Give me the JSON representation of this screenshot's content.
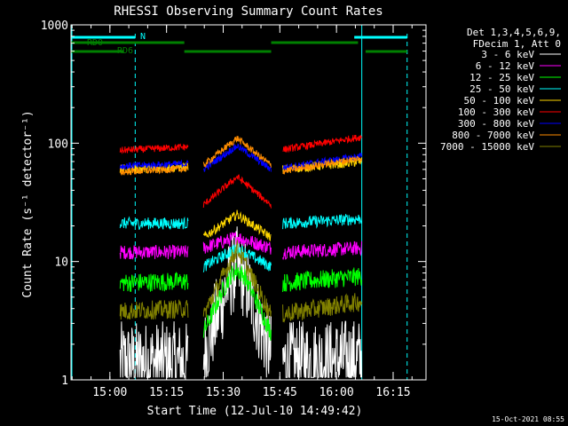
{
  "chart_data": {
    "type": "line",
    "title": "RHESSI Observing Summary Count Rates",
    "xlabel": "Start Time (12-Jul-10 14:49:42)",
    "ylabel": "Count Rate (s⁻¹ detector⁻¹)",
    "yscale": "log",
    "ylim": [
      1,
      1000
    ],
    "y_ticks": [
      {
        "value": 1,
        "label": "1"
      },
      {
        "value": 10,
        "label": "10"
      },
      {
        "value": 100,
        "label": "100"
      },
      {
        "value": 1000,
        "label": "1000"
      }
    ],
    "x_unit": "minutes since 14:49:42",
    "xlim": [
      0,
      94
    ],
    "x_ticks": [
      {
        "value": 10.3,
        "label": "15:00"
      },
      {
        "value": 25.3,
        "label": "15:15"
      },
      {
        "value": 40.3,
        "label": "15:30"
      },
      {
        "value": 55.3,
        "label": "15:45"
      },
      {
        "value": 70.3,
        "label": "16:00"
      },
      {
        "value": 85.3,
        "label": "16:15"
      }
    ],
    "grid": false,
    "legend_position": "right",
    "legend_header": [
      "Det 1,3,4,5,6,9,",
      "FDecim 1, Att 0"
    ],
    "data_gaps": [
      [
        0,
        13
      ],
      [
        31,
        35
      ],
      [
        53,
        56
      ],
      [
        77,
        94
      ]
    ],
    "series": [
      {
        "name": "3 - 6 keV",
        "color": "#ffffff",
        "keypoints": [
          [
            13,
            1.4
          ],
          [
            31,
            1.4
          ],
          [
            35,
            1.6
          ],
          [
            42,
            7
          ],
          [
            44,
            9
          ],
          [
            46,
            7
          ],
          [
            53,
            1.6
          ],
          [
            56,
            1.4
          ],
          [
            77,
            1.5
          ]
        ]
      },
      {
        "name": "6 - 12 keV",
        "color": "#ff00ff",
        "keypoints": [
          [
            13,
            12
          ],
          [
            31,
            12
          ],
          [
            35,
            13
          ],
          [
            44,
            16
          ],
          [
            53,
            13
          ],
          [
            56,
            12
          ],
          [
            77,
            13
          ]
        ]
      },
      {
        "name": "12 - 25 keV",
        "color": "#00ff00",
        "keypoints": [
          [
            13,
            6.6
          ],
          [
            31,
            6.8
          ],
          [
            35,
            2.5
          ],
          [
            42,
            7.5
          ],
          [
            44,
            8.5
          ],
          [
            46,
            7.5
          ],
          [
            53,
            2.5
          ],
          [
            56,
            6.6
          ],
          [
            77,
            7.5
          ]
        ]
      },
      {
        "name": "25 - 50 keV",
        "color": "#00ffff",
        "keypoints": [
          [
            13,
            21
          ],
          [
            31,
            21
          ],
          [
            35,
            9
          ],
          [
            44,
            13
          ],
          [
            53,
            9
          ],
          [
            56,
            21
          ],
          [
            77,
            23
          ]
        ]
      },
      {
        "name": "50 - 100 keV",
        "color": "#ffd700",
        "keypoints": [
          [
            13,
            60
          ],
          [
            31,
            63
          ],
          [
            35,
            16
          ],
          [
            44,
            25
          ],
          [
            53,
            16
          ],
          [
            56,
            60
          ],
          [
            77,
            70
          ]
        ]
      },
      {
        "name": "100 - 300 keV",
        "color": "#ff0000",
        "keypoints": [
          [
            13,
            87
          ],
          [
            31,
            93
          ],
          [
            35,
            30
          ],
          [
            44,
            52
          ],
          [
            53,
            30
          ],
          [
            56,
            88
          ],
          [
            77,
            113
          ]
        ]
      },
      {
        "name": "300 - 800 keV",
        "color": "#0000ff",
        "keypoints": [
          [
            13,
            64
          ],
          [
            31,
            67
          ],
          [
            35,
            60
          ],
          [
            44,
            95
          ],
          [
            53,
            60
          ],
          [
            56,
            62
          ],
          [
            77,
            78
          ]
        ]
      },
      {
        "name": "800 - 7000 keV",
        "color": "#ff8c00",
        "keypoints": [
          [
            13,
            57
          ],
          [
            31,
            61
          ],
          [
            35,
            65
          ],
          [
            44,
            110
          ],
          [
            53,
            65
          ],
          [
            56,
            58
          ],
          [
            77,
            75
          ]
        ]
      },
      {
        "name": "7000 - 15000 keV",
        "color": "#808000",
        "keypoints": [
          [
            13,
            3.8
          ],
          [
            31,
            4
          ],
          [
            35,
            3.5
          ],
          [
            44,
            13
          ],
          [
            53,
            3.5
          ],
          [
            56,
            3.6
          ],
          [
            77,
            4.6
          ]
        ]
      }
    ],
    "annotations": {
      "N": {
        "label": "N",
        "color": "#00ffff",
        "bar": [
          0,
          17
        ],
        "bar2": [
          75,
          89
        ]
      },
      "RD0": {
        "label": "RD0",
        "color": "#008000",
        "bar": [
          0,
          30
        ],
        "bar2": [
          53,
          76
        ]
      },
      "RD6": {
        "label": "RD6",
        "color": "#008000",
        "bar": [
          0,
          14
        ],
        "bar2": [
          30,
          53
        ],
        "bar3": [
          78,
          89
        ]
      }
    },
    "vlines_solid": [
      0,
      77
    ],
    "vlines_dashed": [
      17,
      89
    ],
    "vline_color": "#00ffff"
  },
  "footer": {
    "timestamp": "15-Oct-2021 08:55"
  }
}
